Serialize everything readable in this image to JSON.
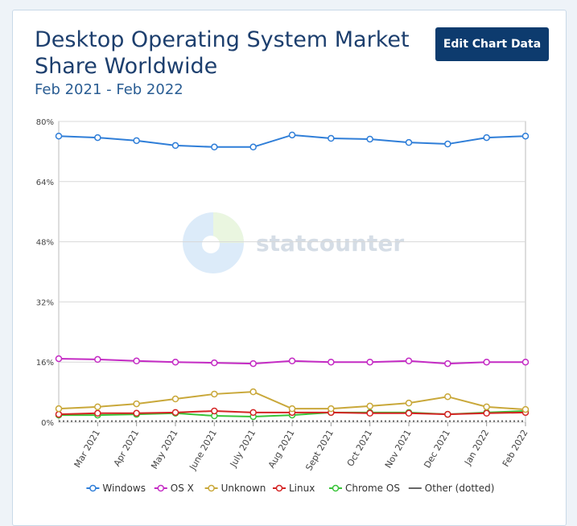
{
  "chart_data": {
    "type": "line",
    "title": "Desktop Operating System Market Share Worldwide",
    "subtitle": "Feb 2021 - Feb 2022",
    "button": "Edit Chart Data",
    "watermark": "statcounter",
    "categories": [
      null,
      "Mar 2021",
      "Apr 2021",
      "May 2021",
      "June 2021",
      "July 2021",
      "Aug 2021",
      "Sept 2021",
      "Oct 2021",
      "Nov 2021",
      "Dec 2021",
      "Jan 2022",
      "Feb 2022"
    ],
    "series": [
      {
        "name": "Windows",
        "color": "#2f7ed8",
        "values": [
          76.1,
          75.7,
          74.9,
          73.6,
          73.2,
          73.2,
          76.4,
          75.5,
          75.3,
          74.4,
          74.0,
          75.7,
          76.1
        ]
      },
      {
        "name": "OS X",
        "color": "#c42bc4",
        "values": [
          16.9,
          16.7,
          16.3,
          16.0,
          15.8,
          15.6,
          16.3,
          16.0,
          16.0,
          16.3,
          15.6,
          16.0,
          16.0
        ]
      },
      {
        "name": "Unknown",
        "color": "#c9a83a",
        "values": [
          3.6,
          4.1,
          4.9,
          6.2,
          7.5,
          8.1,
          3.6,
          3.6,
          4.3,
          5.1,
          6.8,
          4.1,
          3.4
        ]
      },
      {
        "name": "Linux",
        "color": "#d42424",
        "values": [
          2.1,
          2.4,
          2.4,
          2.6,
          3.0,
          2.6,
          2.6,
          2.6,
          2.4,
          2.4,
          2.1,
          2.4,
          2.6
        ]
      },
      {
        "name": "Chrome OS",
        "color": "#38c438",
        "values": [
          1.9,
          1.9,
          2.1,
          2.4,
          1.7,
          1.5,
          1.9,
          2.6,
          2.6,
          2.6,
          2.1,
          2.6,
          3.0
        ]
      },
      {
        "name": "Other (dotted)",
        "color": "#666666",
        "dotted": true,
        "values": [
          0.3,
          0.3,
          0.3,
          0.3,
          0.3,
          0.3,
          0.3,
          0.3,
          0.3,
          0.3,
          0.3,
          0.3,
          0.3
        ]
      }
    ],
    "ylim": [
      0,
      80
    ],
    "yticks": [
      {
        "value": 0,
        "label": "0%"
      },
      {
        "value": 16,
        "label": "16%"
      },
      {
        "value": 32,
        "label": "32%"
      },
      {
        "value": 48,
        "label": "48%"
      },
      {
        "value": 64,
        "label": "64%"
      },
      {
        "value": 80,
        "label": "80%"
      }
    ],
    "grid": true
  }
}
